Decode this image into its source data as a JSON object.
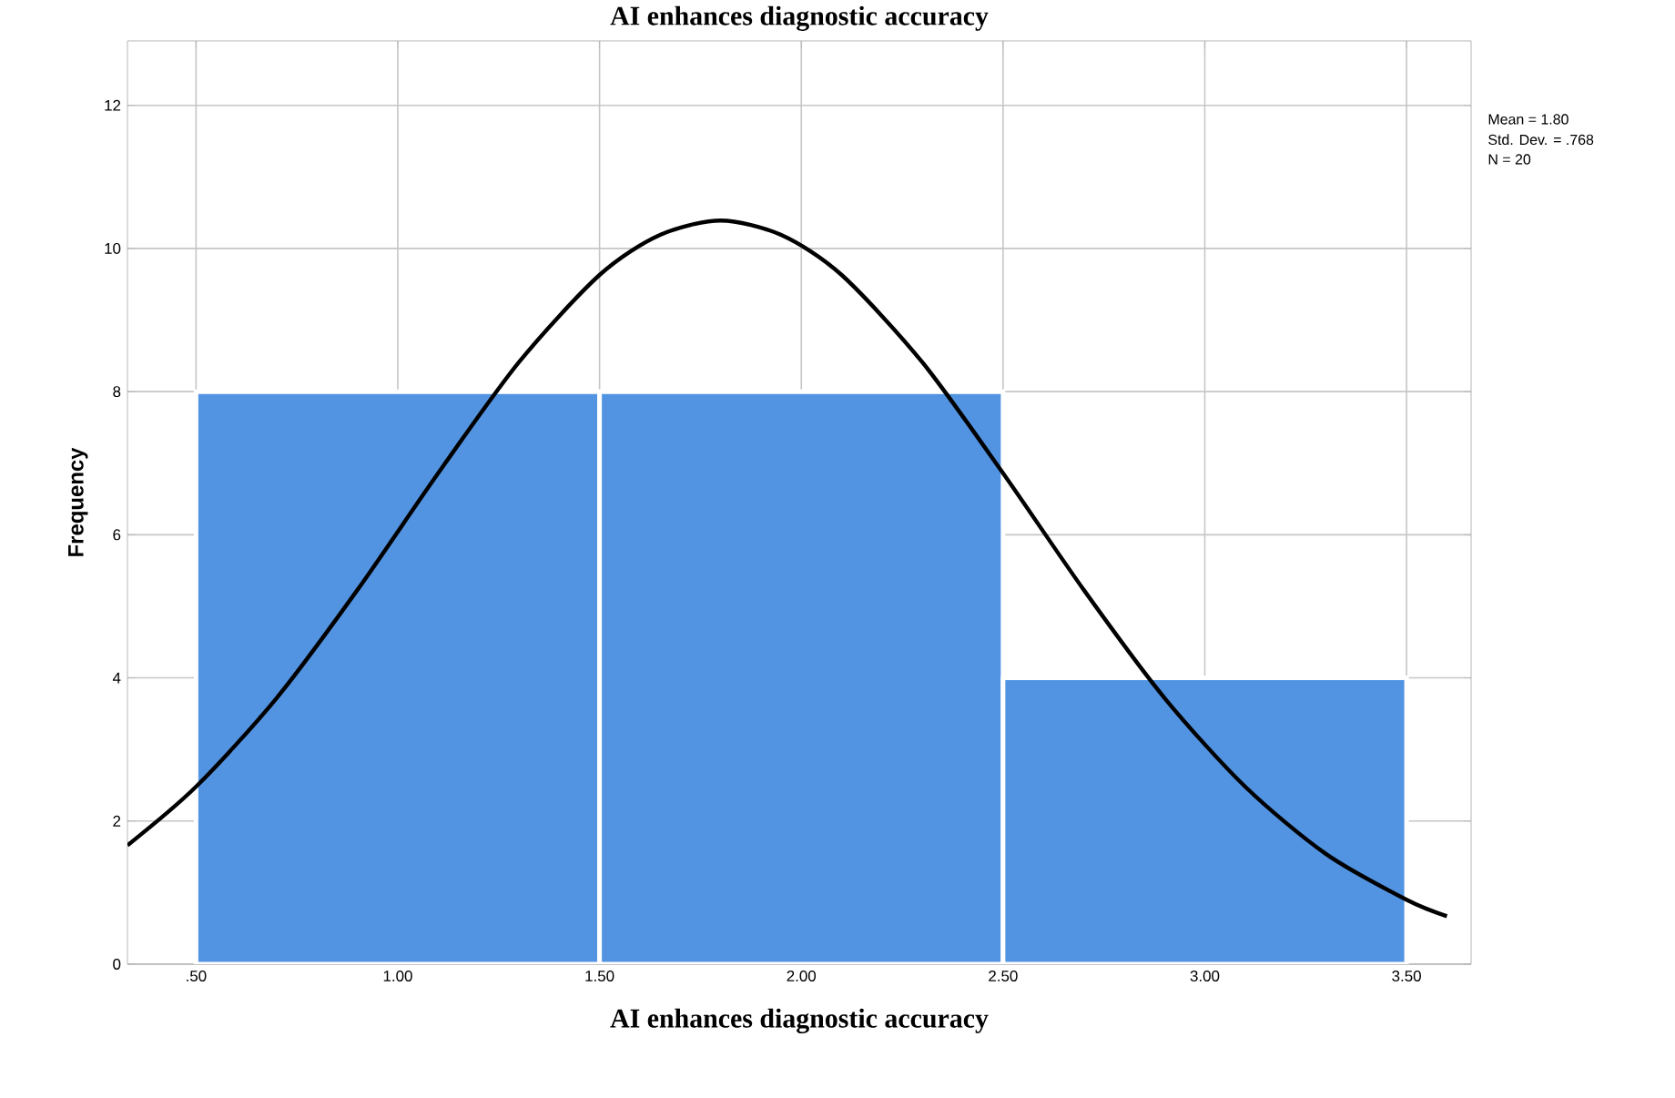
{
  "chart_data": {
    "type": "histogram",
    "title": "AI enhances diagnostic accuracy",
    "xlabel": "AI enhances diagnostic accuracy",
    "ylabel": "Frequency",
    "bins": [
      0.5,
      1.5,
      2.5,
      3.5
    ],
    "values": [
      8,
      8,
      4
    ],
    "color": "#5294e2",
    "series": [
      {
        "type": "line",
        "color": "#000000",
        "x": [
          0.33,
          0.5,
          0.7,
          0.9,
          1.1,
          1.3,
          1.5,
          1.65,
          1.8,
          1.95,
          2.1,
          2.3,
          2.5,
          2.7,
          2.9,
          3.1,
          3.3,
          3.5,
          3.6
        ],
        "values": [
          1.66,
          2.48,
          3.72,
          5.23,
          6.86,
          8.41,
          9.63,
          10.19,
          10.39,
          10.19,
          9.63,
          8.41,
          6.86,
          5.23,
          3.72,
          2.48,
          1.54,
          0.9,
          0.67
        ]
      }
    ],
    "xlim": [
      0.33,
      3.66
    ],
    "ylim": [
      0,
      12.9
    ],
    "xticks": [
      {
        "value": 0.5,
        "label": ".50"
      },
      {
        "value": 1,
        "label": "1.00"
      },
      {
        "value": 1.5,
        "label": "1.50"
      },
      {
        "value": 2,
        "label": "2.00"
      },
      {
        "value": 2.5,
        "label": "2.50"
      },
      {
        "value": 3,
        "label": "3.00"
      },
      {
        "value": 3.5,
        "label": "3.50"
      }
    ],
    "yticks": [
      0,
      2,
      4,
      6,
      8,
      10,
      12
    ],
    "grid": true,
    "marker": "none",
    "line_style": "solid",
    "annotations": [
      "Mean = 1.80",
      "Std. Dev. = .768",
      "N = 20"
    ]
  }
}
